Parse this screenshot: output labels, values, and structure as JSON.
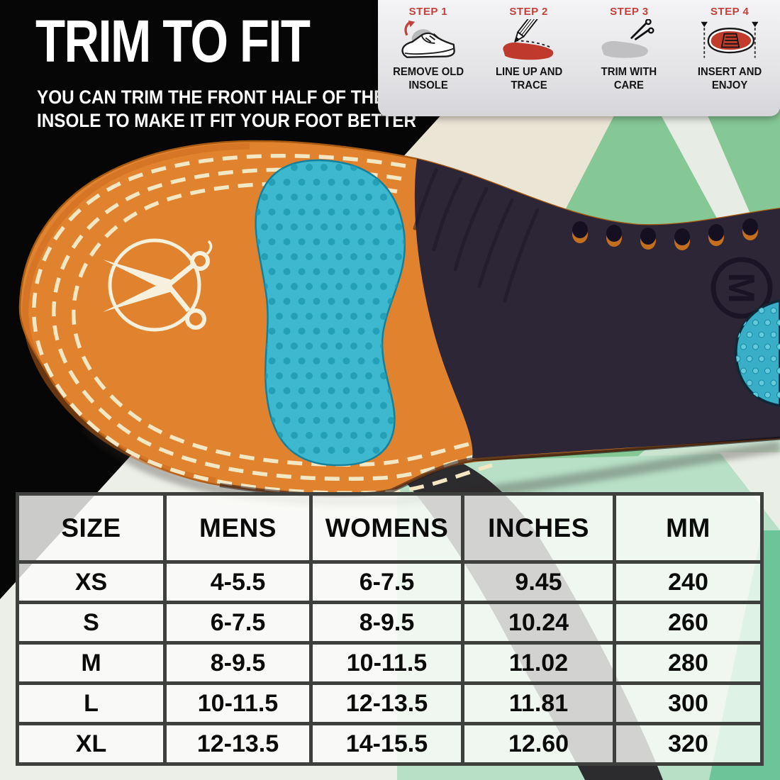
{
  "header": {
    "title": "TRIM TO FIT",
    "subtitle_line1": "YOU CAN TRIM THE FRONT HALF OF THE",
    "subtitle_line2": "INSOLE TO MAKE IT FIT YOUR FOOT BETTER"
  },
  "steps": [
    {
      "label": "STEP 1",
      "caption_line1": "REMOVE OLD",
      "caption_line2": "INSOLE",
      "icon": "sneaker-remove-insole-icon"
    },
    {
      "label": "STEP 2",
      "caption_line1": "LINE UP AND",
      "caption_line2": "TRACE",
      "icon": "pencil-trace-icon"
    },
    {
      "label": "STEP 3",
      "caption_line1": "TRIM WITH",
      "caption_line2": "CARE",
      "icon": "scissors-trim-icon"
    },
    {
      "label": "STEP 4",
      "caption_line1": "INSERT AND",
      "caption_line2": "ENJOY",
      "icon": "shoe-insert-icon"
    }
  ],
  "insole": {
    "size_marking": "M",
    "logo": "scissors-circle-logo"
  },
  "size_chart": {
    "columns": [
      "SIZE",
      "MENS",
      "WOMENS",
      "INCHES",
      "MM"
    ],
    "rows": [
      [
        "XS",
        "4-5.5",
        "6-7.5",
        "9.45",
        "240"
      ],
      [
        "S",
        "6-7.5",
        "8-9.5",
        "10.24",
        "260"
      ],
      [
        "M",
        "8-9.5",
        "10-11.5",
        "11.02",
        "280"
      ],
      [
        "L",
        "10-11.5",
        "12-13.5",
        "11.81",
        "300"
      ],
      [
        "XL",
        "12-13.5",
        "14-15.5",
        "12.60",
        "320"
      ]
    ]
  },
  "colors": {
    "insole_orange": "#e1822e",
    "gel_teal": "#3db8cf",
    "insole_dark": "#2d2636",
    "accent_red": "#c2413a",
    "towel_green": "#85c795",
    "backdrop_black": "#060606"
  }
}
